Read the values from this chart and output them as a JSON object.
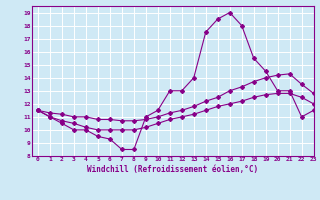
{
  "xlabel": "Windchill (Refroidissement éolien,°C)",
  "background_color": "#cfe9f5",
  "line_color": "#880088",
  "xlim": [
    -0.5,
    23
  ],
  "ylim": [
    8,
    19.5
  ],
  "xticks": [
    0,
    1,
    2,
    3,
    4,
    5,
    6,
    7,
    8,
    9,
    10,
    11,
    12,
    13,
    14,
    15,
    16,
    17,
    18,
    19,
    20,
    21,
    22,
    23
  ],
  "yticks": [
    8,
    9,
    10,
    11,
    12,
    13,
    14,
    15,
    16,
    17,
    18,
    19
  ],
  "series": [
    [
      11.5,
      11.0,
      10.5,
      10.0,
      10.0,
      9.5,
      9.3,
      8.5,
      8.5,
      11.0,
      11.5,
      13.0,
      13.0,
      14.0,
      17.5,
      18.5,
      19.0,
      18.0,
      15.5,
      14.5,
      13.0,
      13.0,
      11.0,
      11.5
    ],
    [
      11.5,
      11.0,
      10.7,
      10.5,
      10.2,
      10.0,
      10.0,
      10.0,
      10.0,
      10.2,
      10.5,
      10.8,
      11.0,
      11.2,
      11.5,
      11.8,
      12.0,
      12.2,
      12.5,
      12.7,
      12.8,
      12.8,
      12.5,
      12.0
    ],
    [
      11.5,
      11.3,
      11.2,
      11.0,
      11.0,
      10.8,
      10.8,
      10.7,
      10.7,
      10.8,
      11.0,
      11.3,
      11.5,
      11.8,
      12.2,
      12.5,
      13.0,
      13.3,
      13.7,
      14.0,
      14.2,
      14.3,
      13.5,
      12.8
    ]
  ]
}
